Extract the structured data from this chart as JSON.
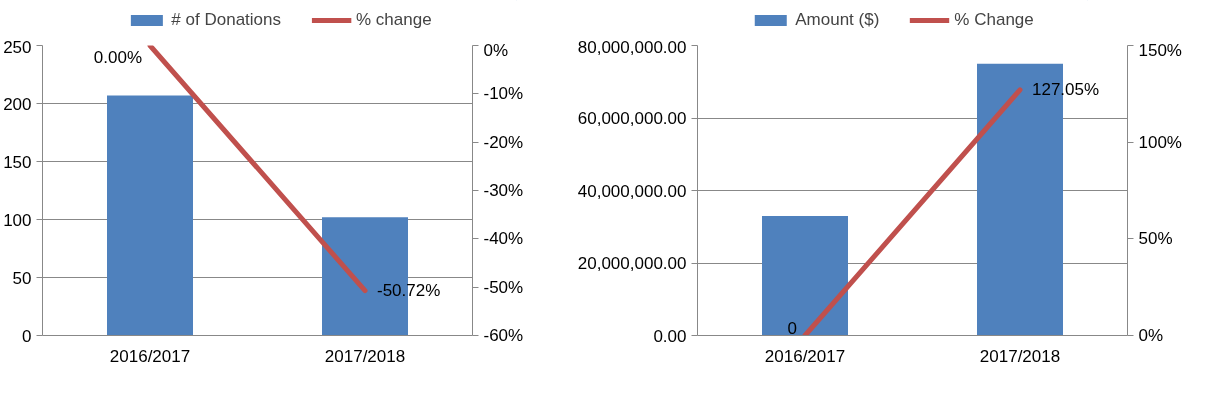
{
  "chart_data": [
    {
      "type": "bar",
      "categories": [
        "2016/2017",
        "2017/2018"
      ],
      "ylim": [
        0,
        250
      ],
      "yticks": [
        0,
        50,
        100,
        150,
        200,
        250
      ],
      "y2lim": [
        -60,
        0
      ],
      "y2ticks": [
        {
          "value": 0,
          "label": "0%"
        },
        {
          "value": -10,
          "label": "-10%"
        },
        {
          "value": -20,
          "label": "-20%"
        },
        {
          "value": -30,
          "label": "-30%"
        },
        {
          "value": -40,
          "label": "-40%"
        },
        {
          "value": -50,
          "label": "-50%"
        },
        {
          "value": -60,
          "label": "-60%"
        }
      ],
      "grid": "y",
      "legend": "top",
      "series": [
        {
          "name": "# of Donations",
          "color": "#4f81bd",
          "values": [
            207,
            102
          ]
        },
        {
          "name": "% change",
          "type": "line",
          "axis": "y2",
          "color": "#c0504d",
          "values": [
            0,
            -50.72
          ],
          "value_labels": [
            "0.00%",
            "-50.72%"
          ]
        }
      ]
    },
    {
      "type": "bar",
      "categories": [
        "2016/2017",
        "2017/2018"
      ],
      "ylim": [
        0,
        80000000
      ],
      "yticks": [
        {
          "value": 0,
          "label": "0.00"
        },
        {
          "value": 20000000,
          "label": "20,000,000.00"
        },
        {
          "value": 40000000,
          "label": "40,000,000.00"
        },
        {
          "value": 60000000,
          "label": "60,000,000.00"
        },
        {
          "value": 80000000,
          "label": "80,000,000.00"
        }
      ],
      "y2lim": [
        0,
        150
      ],
      "y2ticks": [
        {
          "value": 0,
          "label": "0%"
        },
        {
          "value": 50,
          "label": "50%"
        },
        {
          "value": 100,
          "label": "100%"
        },
        {
          "value": 150,
          "label": "150%"
        }
      ],
      "grid": "y",
      "legend": "top",
      "series": [
        {
          "name": "Amount ($)",
          "color": "#4f81bd",
          "values": [
            33000000,
            75000000
          ]
        },
        {
          "name": "% Change",
          "type": "line",
          "axis": "y2",
          "color": "#c0504d",
          "values": [
            0,
            127.05
          ],
          "value_labels": [
            "0",
            "127.05%"
          ]
        }
      ]
    }
  ]
}
